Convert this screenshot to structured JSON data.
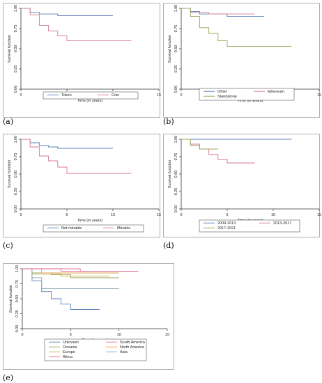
{
  "chart_data": [
    {
      "panel": "(a)",
      "type": "line",
      "ylabel": "Survival function",
      "xlabel": "Time (in years)",
      "xlim": [
        0,
        15
      ],
      "ylim": [
        0,
        1
      ],
      "xticks": [
        0,
        5,
        10,
        15
      ],
      "yticks": [
        "0.00",
        "0.25",
        "0.50",
        "0.75",
        "1.00"
      ],
      "legend_position": "bottom",
      "series": [
        {
          "name": "Token",
          "color": "#5b7fb5",
          "points": [
            [
              0,
              1
            ],
            [
              1,
              1
            ],
            [
              1,
              0.95
            ],
            [
              2,
              0.95
            ],
            [
              2,
              0.93
            ],
            [
              4,
              0.93
            ],
            [
              4,
              0.91
            ],
            [
              10,
              0.91
            ]
          ]
        },
        {
          "name": "Coin",
          "color": "#d47a8c",
          "points": [
            [
              0,
              1
            ],
            [
              1,
              1
            ],
            [
              1,
              0.92
            ],
            [
              2,
              0.92
            ],
            [
              2,
              0.79
            ],
            [
              3,
              0.79
            ],
            [
              3,
              0.72
            ],
            [
              4,
              0.72
            ],
            [
              4,
              0.66
            ],
            [
              5,
              0.66
            ],
            [
              5,
              0.6
            ],
            [
              12,
              0.6
            ]
          ]
        }
      ]
    },
    {
      "panel": "(b)",
      "type": "line",
      "ylabel": "Survival function",
      "xlabel": "Time (in years)",
      "xlim": [
        0,
        15
      ],
      "ylim": [
        0,
        1
      ],
      "xticks": [
        0,
        5,
        10,
        15
      ],
      "yticks": [
        "0.00",
        "0.25",
        "0.50",
        "0.75",
        "1.00"
      ],
      "legend_position": "bottom",
      "series": [
        {
          "name": "Other",
          "color": "#5b7fb5",
          "points": [
            [
              0,
              1
            ],
            [
              1,
              1
            ],
            [
              1,
              0.96
            ],
            [
              2,
              0.96
            ],
            [
              2,
              0.93
            ],
            [
              5,
              0.93
            ],
            [
              5,
              0.9
            ],
            [
              9,
              0.9
            ]
          ]
        },
        {
          "name": "Ethereum",
          "color": "#d47a8c",
          "points": [
            [
              0,
              1
            ],
            [
              1,
              1
            ],
            [
              1,
              0.95
            ],
            [
              3,
              0.95
            ],
            [
              3,
              0.93
            ],
            [
              8,
              0.93
            ]
          ]
        },
        {
          "name": "Standalone",
          "color": "#9aa55a",
          "points": [
            [
              0,
              1
            ],
            [
              1,
              1
            ],
            [
              1,
              0.9
            ],
            [
              2,
              0.9
            ],
            [
              2,
              0.76
            ],
            [
              3,
              0.76
            ],
            [
              3,
              0.69
            ],
            [
              4,
              0.69
            ],
            [
              4,
              0.6
            ],
            [
              5,
              0.6
            ],
            [
              5,
              0.53
            ],
            [
              12,
              0.53
            ]
          ]
        }
      ]
    },
    {
      "panel": "(c)",
      "type": "line",
      "ylabel": "Survival function",
      "xlabel": "Time (in years)",
      "xlim": [
        0,
        15
      ],
      "ylim": [
        0,
        1
      ],
      "xticks": [
        0,
        5,
        10,
        15
      ],
      "yticks": [
        "0.00",
        "0.25",
        "0.50",
        "0.75",
        "1.00"
      ],
      "legend_position": "bottom",
      "series": [
        {
          "name": "Not minable",
          "color": "#5b7fb5",
          "points": [
            [
              0,
              1
            ],
            [
              1,
              1
            ],
            [
              1,
              0.95
            ],
            [
              2,
              0.95
            ],
            [
              2,
              0.91
            ],
            [
              3,
              0.91
            ],
            [
              3,
              0.89
            ],
            [
              4,
              0.89
            ],
            [
              4,
              0.87
            ],
            [
              10,
              0.87
            ]
          ]
        },
        {
          "name": "Minable",
          "color": "#d47a8c",
          "points": [
            [
              0,
              1
            ],
            [
              1,
              1
            ],
            [
              1,
              0.89
            ],
            [
              2,
              0.89
            ],
            [
              2,
              0.76
            ],
            [
              3,
              0.76
            ],
            [
              3,
              0.69
            ],
            [
              4,
              0.69
            ],
            [
              4,
              0.6
            ],
            [
              5,
              0.6
            ],
            [
              5,
              0.51
            ],
            [
              12,
              0.51
            ]
          ]
        }
      ]
    },
    {
      "panel": "(d)",
      "type": "line",
      "ylabel": "Survival function",
      "xlabel": "Time (in years)",
      "xlim": [
        0,
        15
      ],
      "ylim": [
        0,
        1
      ],
      "xticks": [
        0,
        5,
        10,
        15
      ],
      "yticks": [
        "0.00",
        "0.25",
        "0.50",
        "0.75",
        "1.00"
      ],
      "legend_position": "bottom",
      "series": [
        {
          "name": "2009-2013",
          "color": "#5b7fb5",
          "points": [
            [
              0,
              1
            ],
            [
              12,
              1
            ]
          ]
        },
        {
          "name": "2013-2017",
          "color": "#d47a8c",
          "points": [
            [
              0,
              1
            ],
            [
              1,
              1
            ],
            [
              1,
              0.93
            ],
            [
              2,
              0.93
            ],
            [
              2,
              0.86
            ],
            [
              3,
              0.86
            ],
            [
              3,
              0.78
            ],
            [
              4,
              0.78
            ],
            [
              4,
              0.71
            ],
            [
              5,
              0.71
            ],
            [
              5,
              0.66
            ],
            [
              8,
              0.66
            ]
          ]
        },
        {
          "name": "2017-2021",
          "color": "#9aa55a",
          "points": [
            [
              0,
              1
            ],
            [
              1,
              1
            ],
            [
              1,
              0.91
            ],
            [
              2,
              0.91
            ],
            [
              2,
              0.86
            ],
            [
              4,
              0.86
            ]
          ]
        }
      ]
    },
    {
      "panel": "(e)",
      "type": "line",
      "ylabel": "Survival function",
      "xlabel": "Time (in years)",
      "xlim": [
        0,
        15
      ],
      "ylim": [
        0,
        1
      ],
      "xticks": [
        0,
        5,
        10,
        15
      ],
      "yticks": [
        "0.00",
        "0.25",
        "0.50",
        "0.75",
        "1.00"
      ],
      "legend_position": "bottom",
      "series": [
        {
          "name": "Unknown",
          "color": "#5b7fb5",
          "points": [
            [
              0,
              1
            ],
            [
              1,
              1
            ],
            [
              1,
              0.8
            ],
            [
              2,
              0.8
            ],
            [
              2,
              0.62
            ],
            [
              3,
              0.62
            ],
            [
              3,
              0.5
            ],
            [
              4,
              0.5
            ],
            [
              4,
              0.41
            ],
            [
              5,
              0.41
            ],
            [
              5,
              0.32
            ],
            [
              8,
              0.32
            ]
          ]
        },
        {
          "name": "South America",
          "color": "#d47a8c",
          "points": [
            [
              0,
              1
            ],
            [
              6,
              1
            ],
            [
              6,
              0.96
            ],
            [
              12,
              0.96
            ]
          ]
        },
        {
          "name": "Oceania",
          "color": "#9aa55a",
          "points": [
            [
              0,
              1
            ],
            [
              1,
              1
            ],
            [
              1,
              0.93
            ],
            [
              3,
              0.93
            ],
            [
              3,
              0.9
            ],
            [
              5,
              0.9
            ],
            [
              5,
              0.85
            ],
            [
              10,
              0.85
            ]
          ]
        },
        {
          "name": "North America",
          "color": "#e09a4e",
          "points": [
            [
              0,
              1
            ],
            [
              2,
              1
            ],
            [
              2,
              0.93
            ],
            [
              10,
              0.93
            ]
          ]
        },
        {
          "name": "Europe",
          "color": "#c7b04a",
          "points": [
            [
              0,
              1
            ],
            [
              1,
              1
            ],
            [
              1,
              0.91
            ],
            [
              4,
              0.91
            ],
            [
              4,
              0.88
            ],
            [
              9,
              0.88
            ]
          ]
        },
        {
          "name": "Asia",
          "color": "#89aab6",
          "points": [
            [
              0,
              1
            ],
            [
              1,
              1
            ],
            [
              1,
              0.85
            ],
            [
              2,
              0.85
            ],
            [
              2,
              0.67
            ],
            [
              10,
              0.67
            ]
          ]
        },
        {
          "name": "Africa",
          "color": "#e0628a",
          "points": [
            [
              0,
              1
            ],
            [
              4,
              1
            ],
            [
              4,
              0.96
            ],
            [
              12,
              0.96
            ]
          ]
        }
      ]
    }
  ]
}
